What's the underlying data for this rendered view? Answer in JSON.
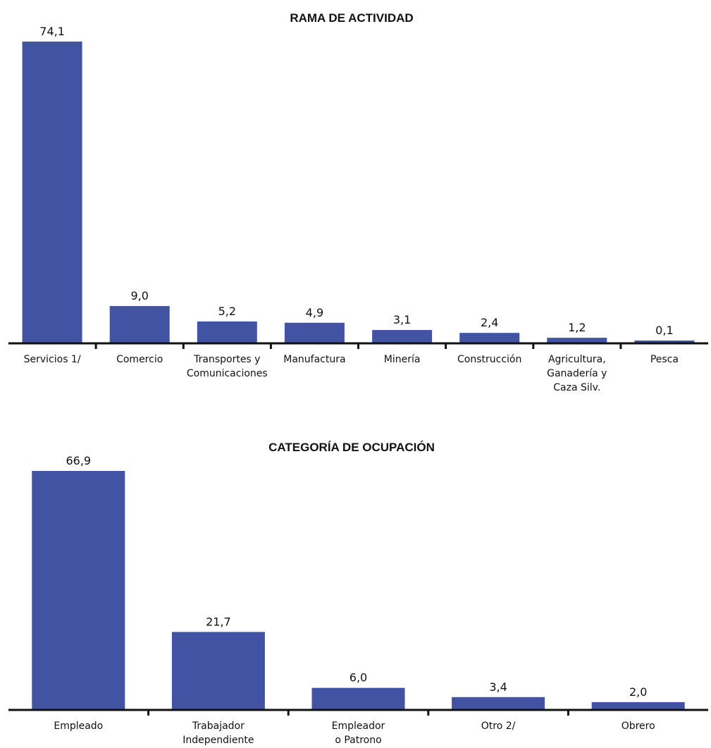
{
  "chart_data": [
    {
      "type": "bar",
      "title": "RAMA DE ACTIVIDAD",
      "categories": [
        [
          "Servicios 1/"
        ],
        [
          "Comercio"
        ],
        [
          "Transportes y",
          "Comunicaciones"
        ],
        [
          "Manufactura"
        ],
        [
          "Minería"
        ],
        [
          "Construcción"
        ],
        [
          "Agricultura,",
          "Ganadería y",
          "Caza Silv."
        ],
        [
          "Pesca"
        ]
      ],
      "values": [
        74.1,
        9.0,
        5.2,
        4.9,
        3.1,
        2.4,
        1.2,
        0.1
      ],
      "value_labels": [
        "74,1",
        "9,0",
        "5,2",
        "4,9",
        "3,1",
        "2,4",
        "1,2",
        "0,1"
      ],
      "bar_color": "#4353A4",
      "axis_color": "#111111",
      "grid": false,
      "ylim": [
        0,
        74.1
      ]
    },
    {
      "type": "bar",
      "title": "CATEGORÍA DE OCUPACIÓN",
      "categories": [
        [
          "Empleado"
        ],
        [
          "Trabajador",
          "Independiente"
        ],
        [
          "Empleador",
          "o Patrono"
        ],
        [
          "Otro 2/"
        ],
        [
          "Obrero"
        ]
      ],
      "values": [
        66.9,
        21.7,
        6.0,
        3.4,
        2.0
      ],
      "value_labels": [
        "66,9",
        "21,7",
        "6,0",
        "3,4",
        "2,0"
      ],
      "bar_color": "#4353A4",
      "axis_color": "#111111",
      "grid": false,
      "ylim": [
        0,
        66.9
      ]
    }
  ]
}
